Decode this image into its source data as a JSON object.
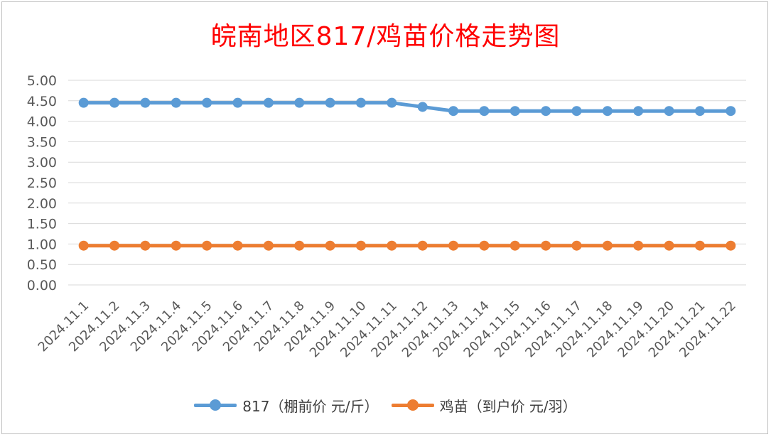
{
  "colors": {
    "series1": "#5b9bd5",
    "series2": "#ed7d31",
    "title": "#ff0000",
    "grid": "#d9d9d9",
    "axis_text": "#595959"
  },
  "chart_data": {
    "type": "line",
    "title": "皖南地区817/鸡苗价格走势图",
    "categories": [
      "2024.11.1",
      "2024.11.2",
      "2024.11.3",
      "2024.11.4",
      "2024.11.5",
      "2024.11.6",
      "2024.11.7",
      "2024.11.8",
      "2024.11.9",
      "2024.11.10",
      "2024.11.11",
      "2024.11.12",
      "2024.11.13",
      "2024.11.14",
      "2024.11.15",
      "2024.11.16",
      "2024.11.17",
      "2024.11.18",
      "2024.11.19",
      "2024.11.20",
      "2024.11.21",
      "2024.11.22"
    ],
    "series": [
      {
        "name": "817（棚前价 元/斤）",
        "values": [
          4.45,
          4.45,
          4.45,
          4.45,
          4.45,
          4.45,
          4.45,
          4.45,
          4.45,
          4.45,
          4.45,
          4.35,
          4.25,
          4.25,
          4.25,
          4.25,
          4.25,
          4.25,
          4.25,
          4.25,
          4.25,
          4.25
        ]
      },
      {
        "name": "鸡苗（到户价 元/羽）",
        "values": [
          0.96,
          0.96,
          0.96,
          0.96,
          0.96,
          0.96,
          0.96,
          0.96,
          0.96,
          0.96,
          0.96,
          0.96,
          0.96,
          0.96,
          0.96,
          0.96,
          0.96,
          0.96,
          0.96,
          0.96,
          0.96,
          0.96
        ]
      }
    ],
    "ylim": [
      0,
      5
    ],
    "yticks": [
      "0.00",
      "0.50",
      "1.00",
      "1.50",
      "2.00",
      "2.50",
      "3.00",
      "3.50",
      "4.00",
      "4.50",
      "5.00"
    ],
    "grid": true,
    "legend_position": "bottom"
  }
}
